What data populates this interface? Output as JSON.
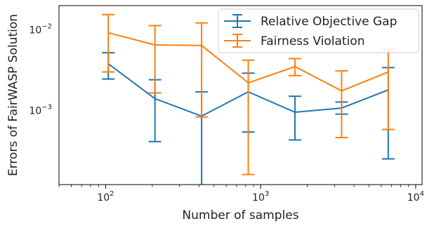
{
  "chart_data": {
    "type": "line",
    "xlabel": "Number of samples",
    "ylabel": "Errors of FairWASP Solution",
    "xscale": "log",
    "yscale": "log",
    "xlim": [
      50,
      11000
    ],
    "ylim": [
      0.00012,
      0.02
    ],
    "grid": false,
    "legend_position": "top-right",
    "x_ticks": [
      {
        "base": "10",
        "exp": "2",
        "value": 100
      },
      {
        "base": "10",
        "exp": "3",
        "value": 1000
      },
      {
        "base": "10",
        "exp": "4",
        "value": 10000
      }
    ],
    "y_ticks": [
      {
        "base": "10",
        "exp": "−3",
        "value": 0.001
      },
      {
        "base": "10",
        "exp": "−2",
        "value": 0.01
      }
    ],
    "series": [
      {
        "name": "Relative Objective Gap",
        "color": "#1f77b4",
        "x": [
          104,
          208,
          416,
          832,
          1664,
          3328,
          6656
        ],
        "y": [
          0.0038,
          0.0014,
          0.00085,
          0.0017,
          0.00095,
          0.00107,
          0.0018
        ],
        "err_low": [
          0.00245,
          0.00041,
          0.0001,
          0.00054,
          0.00043,
          0.0009,
          0.00025
        ],
        "err_high": [
          0.0052,
          0.0024,
          0.0017,
          0.0029,
          0.0015,
          0.00127,
          0.0034
        ]
      },
      {
        "name": "Fairness Violation",
        "color": "#ff7f0e",
        "x": [
          104,
          208,
          416,
          832,
          1664,
          3328,
          6656
        ],
        "y": [
          0.0092,
          0.0065,
          0.0064,
          0.0022,
          0.0035,
          0.00175,
          0.003
        ],
        "err_low": [
          0.003,
          0.00165,
          0.00083,
          0.00016,
          0.0027,
          0.00046,
          0.00058
        ],
        "err_high": [
          0.0155,
          0.0113,
          0.0122,
          0.0042,
          0.0044,
          0.0031,
          0.0057
        ]
      }
    ]
  }
}
